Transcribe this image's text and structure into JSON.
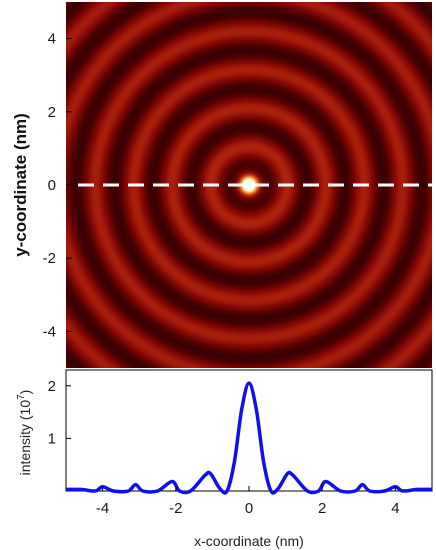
{
  "chart_data": [
    {
      "type": "heatmap",
      "title": "",
      "xlabel": "",
      "ylabel": "y-coordinate (nm)",
      "xlim": [
        -5,
        5
      ],
      "ylim": [
        -5,
        5
      ],
      "y_ticks": [
        4,
        2,
        0,
        -2,
        -4
      ],
      "y_tick_labels": [
        "4",
        "2",
        "0",
        "-2",
        "-4"
      ],
      "colormap": [
        "#000000",
        "#4a0000",
        "#8b0a05",
        "#c83a14",
        "#f08a2a",
        "#ffd45a",
        "#ffffff"
      ],
      "pattern": "concentric rings",
      "ring_period_nm": 1.05,
      "line_cut": {
        "y": 0,
        "style": "dashed",
        "color": "#ffffff"
      }
    },
    {
      "type": "line",
      "title": "",
      "xlabel": "x-coordinate (nm)",
      "ylabel": "intensity  (10",
      "ylabel_superscript": "7",
      "ylabel_close": ")",
      "xlim": [
        -5,
        5
      ],
      "ylim": [
        0,
        2.3
      ],
      "x_ticks": [
        -4,
        -2,
        0,
        2,
        4
      ],
      "x_tick_labels": [
        "-4",
        "-2",
        "0",
        "2",
        "4"
      ],
      "y_ticks": [
        1,
        2
      ],
      "y_tick_labels": [
        "1",
        "2"
      ],
      "series_color": "#1010ee",
      "series": [
        {
          "x": [
            -5.0,
            -4.6,
            -4.2,
            -4.0,
            -3.7,
            -3.3,
            -3.1,
            -2.9,
            -2.5,
            -2.1,
            -1.9,
            -1.6,
            -1.2,
            -1.05,
            -0.8,
            -0.6,
            -0.4,
            -0.2,
            0.0,
            0.2,
            0.4,
            0.6,
            0.8,
            1.05,
            1.2,
            1.6,
            1.9,
            2.1,
            2.5,
            2.9,
            3.1,
            3.3,
            3.7,
            4.0,
            4.2,
            4.6,
            5.0
          ],
          "values": [
            0.03,
            0.03,
            0.0,
            0.08,
            0.0,
            0.0,
            0.12,
            0.0,
            0.0,
            0.18,
            0.0,
            0.0,
            0.3,
            0.33,
            0.05,
            0.0,
            0.55,
            1.55,
            2.05,
            1.55,
            0.55,
            0.0,
            0.05,
            0.33,
            0.3,
            0.0,
            0.0,
            0.18,
            0.0,
            0.0,
            0.12,
            0.0,
            0.0,
            0.08,
            0.0,
            0.03,
            0.03
          ]
        }
      ]
    }
  ]
}
